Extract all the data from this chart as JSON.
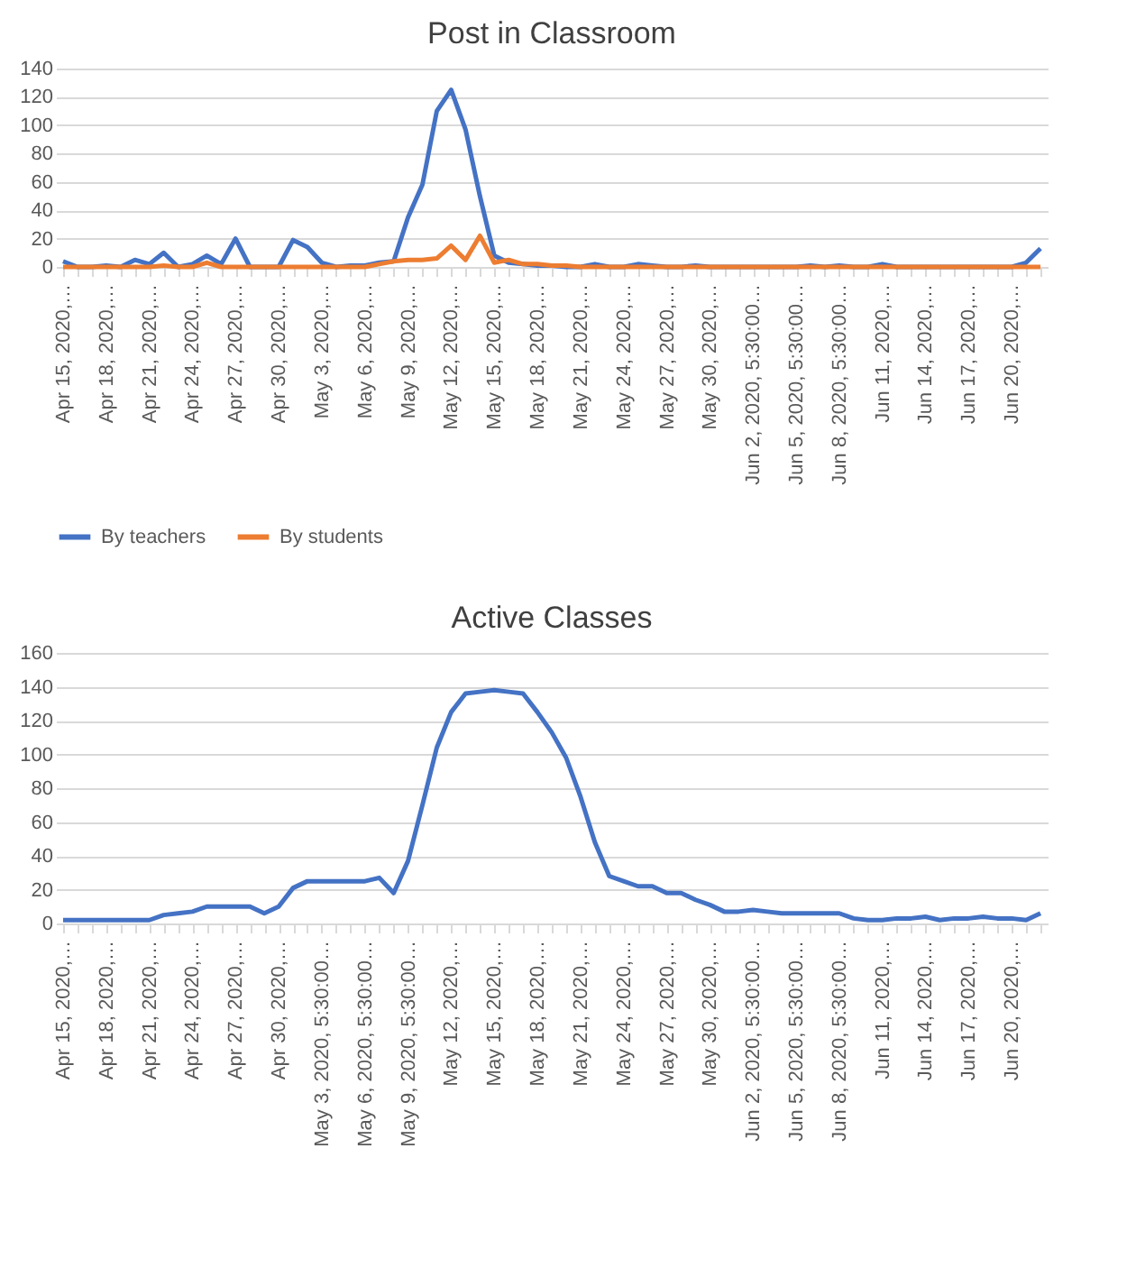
{
  "chart_data": [
    {
      "type": "line",
      "title": "Post in Classroom",
      "categories": [
        "Apr 15, 2020,…",
        null,
        null,
        "Apr 18, 2020,…",
        null,
        null,
        "Apr 21, 2020,…",
        null,
        null,
        "Apr 24, 2020,…",
        null,
        null,
        "Apr 27, 2020,…",
        null,
        null,
        "Apr 30, 2020,…",
        null,
        null,
        "May 3, 2020,…",
        null,
        null,
        "May 6, 2020,…",
        null,
        null,
        "May 9, 2020,…",
        null,
        null,
        "May 12, 2020,…",
        null,
        null,
        "May 15, 2020,…",
        null,
        null,
        "May 18, 2020,…",
        null,
        null,
        "May 21, 2020,…",
        null,
        null,
        "May 24, 2020,…",
        null,
        null,
        "May 27, 2020,…",
        null,
        null,
        "May 30, 2020,…",
        null,
        null,
        "Jun 2, 2020, 5:30:00…",
        null,
        null,
        "Jun 5, 2020, 5:30:00…",
        null,
        null,
        "Jun 8, 2020, 5:30:00…",
        null,
        null,
        "Jun 11, 2020,…",
        null,
        null,
        "Jun 14, 2020,…",
        null,
        null,
        "Jun 17, 2020,…",
        null,
        null,
        "Jun 20, 2020,…",
        null,
        null
      ],
      "series": [
        {
          "name": "By teachers",
          "color": "#4472c4",
          "values": [
            4,
            0,
            0,
            1,
            0,
            5,
            2,
            10,
            0,
            2,
            8,
            2,
            20,
            0,
            0,
            0,
            19,
            14,
            3,
            0,
            1,
            1,
            3,
            4,
            35,
            58,
            110,
            125,
            97,
            50,
            8,
            3,
            2,
            1,
            1,
            0,
            0,
            2,
            0,
            0,
            2,
            1,
            0,
            0,
            1,
            0,
            0,
            0,
            0,
            0,
            0,
            0,
            1,
            0,
            1,
            0,
            0,
            2,
            0,
            0,
            0,
            0,
            0,
            0,
            0,
            0,
            0,
            3,
            13
          ]
        },
        {
          "name": "By students",
          "color": "#ed7d31",
          "values": [
            0,
            0,
            0,
            0,
            0,
            0,
            0,
            1,
            0,
            0,
            3,
            0,
            0,
            0,
            0,
            0,
            0,
            0,
            0,
            0,
            0,
            0,
            2,
            4,
            5,
            5,
            6,
            15,
            5,
            22,
            3,
            5,
            2,
            2,
            1,
            1,
            0,
            0,
            0,
            0,
            0,
            0,
            0,
            0,
            0,
            0,
            0,
            0,
            0,
            0,
            0,
            0,
            0,
            0,
            0,
            0,
            0,
            0,
            0,
            0,
            0,
            0,
            0,
            0,
            0,
            0,
            0,
            0,
            0
          ]
        }
      ],
      "ylim": [
        0,
        140
      ],
      "yticks": [
        0,
        20,
        40,
        60,
        80,
        100,
        120,
        140
      ],
      "grid": "y",
      "legend": "bottom",
      "line_style": "solid"
    },
    {
      "type": "line",
      "title": "Active Classes",
      "categories": [
        "Apr 15, 2020,…",
        null,
        null,
        "Apr 18, 2020,…",
        null,
        null,
        "Apr 21, 2020,…",
        null,
        null,
        "Apr 24, 2020,…",
        null,
        null,
        "Apr 27, 2020,…",
        null,
        null,
        "Apr 30, 2020,…",
        null,
        null,
        "May 3, 2020, 5:30:00…",
        null,
        null,
        "May 6, 2020, 5:30:00…",
        null,
        null,
        "May 9, 2020, 5:30:00…",
        null,
        null,
        "May 12, 2020,…",
        null,
        null,
        "May 15, 2020,…",
        null,
        null,
        "May 18, 2020,…",
        null,
        null,
        "May 21, 2020,…",
        null,
        null,
        "May 24, 2020,…",
        null,
        null,
        "May 27, 2020,…",
        null,
        null,
        "May 30, 2020,…",
        null,
        null,
        "Jun 2, 2020, 5:30:00…",
        null,
        null,
        "Jun 5, 2020, 5:30:00…",
        null,
        null,
        "Jun 8, 2020, 5:30:00…",
        null,
        null,
        "Jun 11, 2020,…",
        null,
        null,
        "Jun 14, 2020,…",
        null,
        null,
        "Jun 17, 2020,…",
        null,
        null,
        "Jun 20, 2020,…",
        null,
        null
      ],
      "series": [
        {
          "color": "#4472c4",
          "values": [
            2,
            2,
            2,
            2,
            2,
            2,
            2,
            5,
            6,
            7,
            10,
            10,
            10,
            10,
            6,
            10,
            21,
            25,
            25,
            25,
            25,
            25,
            27,
            18,
            37,
            70,
            104,
            125,
            136,
            137,
            138,
            137,
            136,
            125,
            113,
            98,
            75,
            48,
            28,
            25,
            22,
            22,
            18,
            18,
            14,
            11,
            7,
            7,
            8,
            7,
            6,
            6,
            6,
            6,
            6,
            3,
            2,
            2,
            3,
            3,
            4,
            2,
            3,
            3,
            4,
            3,
            3,
            2,
            6
          ]
        }
      ],
      "ylim": [
        0,
        160
      ],
      "yticks": [
        0,
        20,
        40,
        60,
        80,
        100,
        120,
        140,
        160
      ],
      "grid": "y",
      "line_style": "solid"
    }
  ]
}
